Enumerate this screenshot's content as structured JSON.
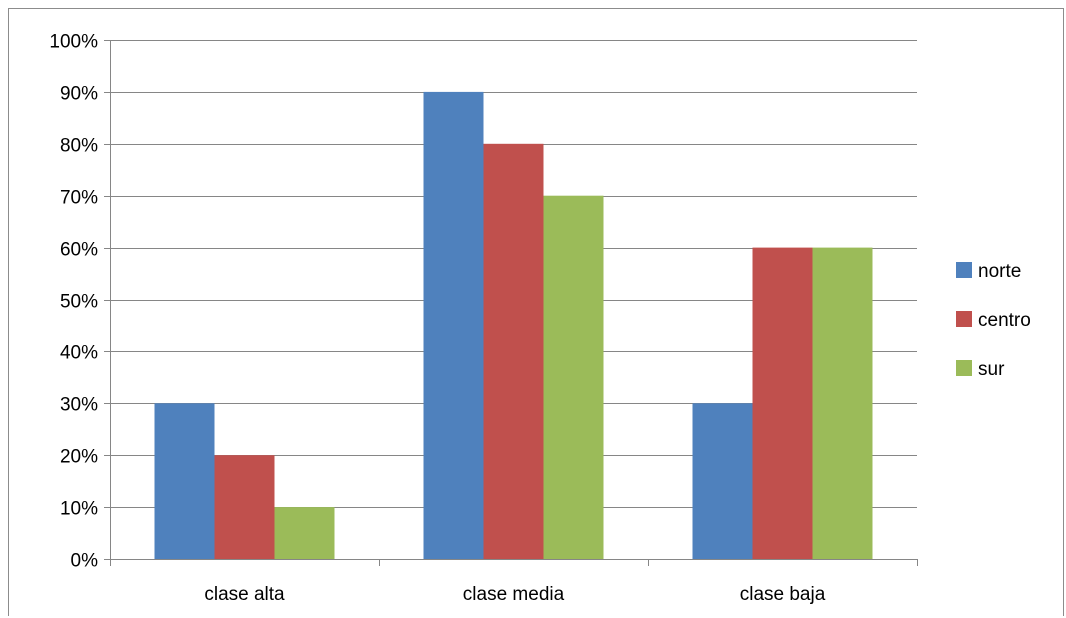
{
  "chart_data": {
    "type": "bar",
    "title": "",
    "xlabel": "",
    "ylabel": "",
    "categories": [
      "clase alta",
      "clase media",
      "clase baja"
    ],
    "series": [
      {
        "name": "norte",
        "color": "#4f81bd",
        "values": [
          0.3,
          0.9,
          0.3
        ]
      },
      {
        "name": "centro",
        "color": "#c0504d",
        "values": [
          0.2,
          0.8,
          0.6
        ]
      },
      {
        "name": "sur",
        "color": "#9bbb59",
        "values": [
          0.1,
          0.7,
          0.6
        ]
      }
    ],
    "ylim": [
      0,
      1
    ],
    "yticks": [
      0,
      0.1,
      0.2,
      0.3,
      0.4,
      0.5,
      0.6,
      0.7,
      0.8,
      0.9,
      1.0
    ],
    "ytick_labels": [
      "0%",
      "10%",
      "20%",
      "30%",
      "40%",
      "50%",
      "60%",
      "70%",
      "80%",
      "90%",
      "100%"
    ],
    "grid": true,
    "legend_position": "right",
    "gridline_color": "#868686",
    "axis_color": "#868686"
  }
}
